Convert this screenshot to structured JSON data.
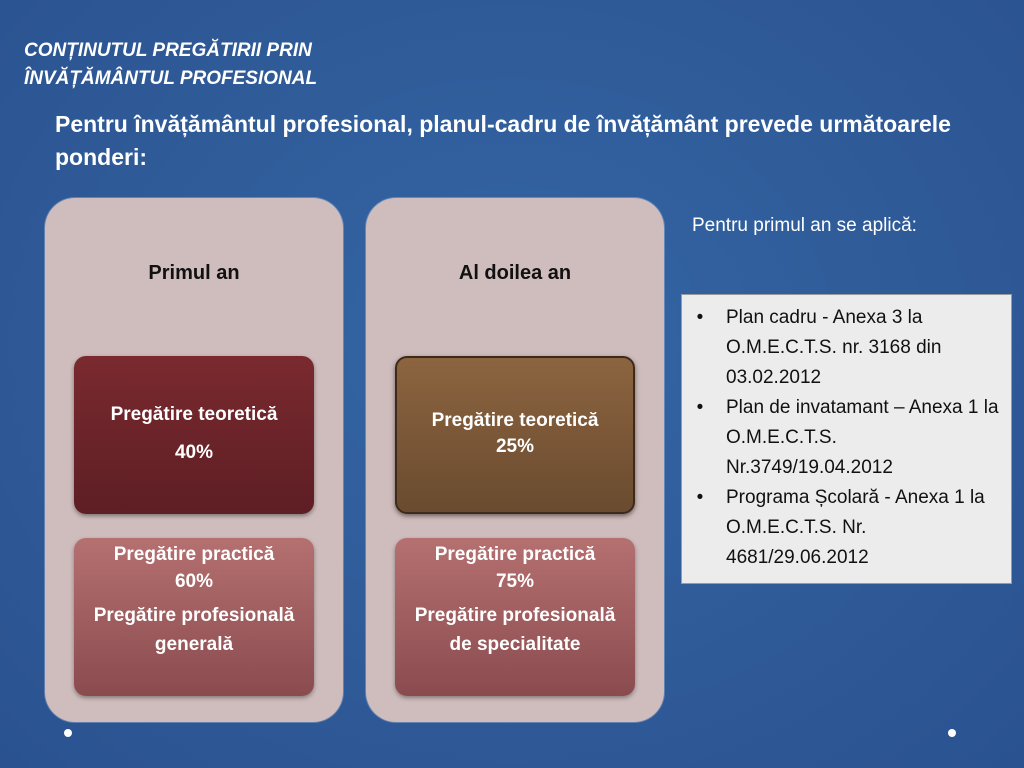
{
  "slide": {
    "heading_line1": "CONȚINUTUL PREGĂTIRII PRIN",
    "heading_line2": "ÎNVĂȚĂMÂNTUL PROFESIONAL",
    "intro": "Pentru învățământul profesional, planul-cadru de învățământ prevede următoarele ponderi:"
  },
  "columns": [
    {
      "title": "Primul an",
      "theory_label": "Pregătire teoretică",
      "theory_value": "40%",
      "practice_label": "Pregătire practică",
      "practice_value": "60%",
      "practice_detail": "Pregătire profesională generală"
    },
    {
      "title": "Al doilea an",
      "theory_label": "Pregătire teoretică",
      "theory_value": "25%",
      "practice_label": "Pregătire practică",
      "practice_value": "75%",
      "practice_detail": "Pregătire profesională de specialitate"
    }
  ],
  "side_note": "Pentru primul an se aplică:",
  "references": {
    "bullet": "•",
    "items": [
      "Plan cadru - Anexa 3 la O.M.E.C.T.S. nr. 3168 din 03.02.2012",
      "Plan de invatamant – Anexa 1 la O.M.E.C.T.S. Nr.3749/19.04.2012",
      "Programa Școlară -  Anexa 1 la O.M.E.C.T.S. Nr. 4681/29.06.2012"
    ]
  },
  "colors": {
    "background": "#2f5b98",
    "column_panel": "#cfbcbc",
    "theory_year1": "#6b2329",
    "theory_year2": "#7a5737",
    "practice": "#a05e62"
  }
}
